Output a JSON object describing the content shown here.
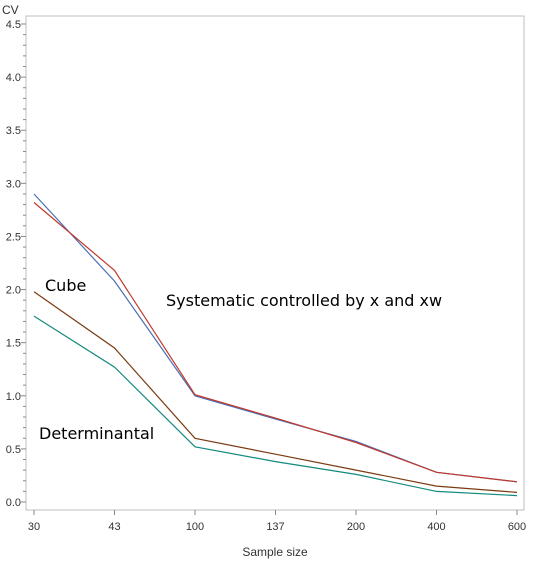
{
  "chart_data": {
    "type": "line",
    "categories": [
      "30",
      "43",
      "100",
      "137",
      "200",
      "400",
      "600"
    ],
    "xlabel": "Sample size",
    "ylabel": "CV",
    "ylim": [
      0,
      4.5
    ],
    "yticks": [
      "0.0",
      "0.5",
      "1.0",
      "1.5",
      "2.0",
      "2.5",
      "3.0",
      "3.5",
      "4.0",
      "4.5"
    ],
    "grid": false,
    "legend": "none",
    "series": [
      {
        "color": "#4a6fb5",
        "values": [
          2.9,
          2.08,
          1.0,
          0.78,
          0.57,
          0.28,
          0.19
        ]
      },
      {
        "color": "#c0392b",
        "values": [
          2.82,
          2.18,
          1.01,
          0.79,
          0.56,
          0.28,
          0.19
        ]
      },
      {
        "color": "#7a3b10",
        "values": [
          1.98,
          1.45,
          0.6,
          0.45,
          0.3,
          0.15,
          0.09
        ]
      },
      {
        "color": "#138a7c",
        "values": [
          1.75,
          1.27,
          0.52,
          0.38,
          0.26,
          0.1,
          0.06
        ]
      }
    ],
    "annotations": {
      "cube": "Cube",
      "systematic": "Systematic controlled by x and xw",
      "determinantal": "Determinantal"
    }
  }
}
